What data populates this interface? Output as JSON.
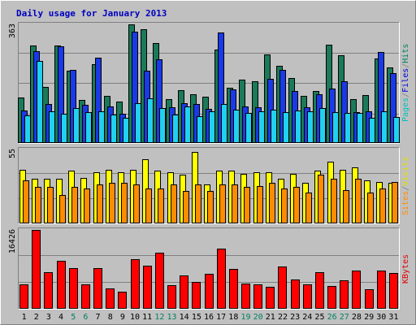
{
  "chart_data": {
    "type": "bar",
    "title": "Daily usage for January 2013",
    "days": [
      "1",
      "2",
      "3",
      "4",
      "5",
      "6",
      "7",
      "8",
      "9",
      "10",
      "11",
      "12",
      "13",
      "14",
      "15",
      "16",
      "17",
      "18",
      "19",
      "20",
      "21",
      "22",
      "23",
      "24",
      "25",
      "26",
      "27",
      "28",
      "29",
      "30",
      "31"
    ],
    "weekend_days": [
      "5",
      "6",
      "12",
      "13",
      "19",
      "20",
      "26",
      "27"
    ],
    "panels": [
      {
        "name": "hits-files-pages",
        "max_label": "363",
        "max": 363,
        "legend": [
          "Pages",
          "Files",
          "Hits"
        ],
        "series": [
          {
            "name": "Hits",
            "color": "#1a7a5a",
            "values": [
              140,
              298,
              172,
              298,
              221,
              131,
              242,
              145,
              128,
              363,
              349,
              305,
              135,
              162,
              149,
              142,
              285,
              169,
              193,
              190,
              271,
              236,
              200,
              143,
              158,
              301,
              269,
              135,
              147,
              258,
              230
            ]
          },
          {
            "name": "Files",
            "color": "#1a3ae8",
            "values": [
              100,
              282,
              119,
              295,
              224,
              117,
              260,
              113,
              89,
              340,
              221,
              255,
              110,
              123,
              119,
              105,
              337,
              163,
              111,
              110,
              196,
              225,
              159,
              109,
              150,
              167,
              190,
              94,
              98,
              278,
              213
            ]
          },
          {
            "name": "Pages",
            "color": "#22d0f0",
            "values": [
              84,
              252,
              98,
              89,
              107,
              94,
              96,
              87,
              77,
              121,
              136,
              107,
              86,
              112,
              81,
              96,
              120,
              102,
              92,
              96,
              102,
              95,
              99,
              97,
              108,
              95,
              92,
              93,
              77,
              96,
              80
            ]
          }
        ]
      },
      {
        "name": "visits-sites",
        "max_label": "55",
        "max": 55,
        "legend": [
          "Sites",
          "Visits"
        ],
        "series": [
          {
            "name": "Visits",
            "color": "#ffff00",
            "values": [
              40,
              33,
              33,
              33,
              39,
              34,
              38,
              40,
              38,
              40,
              48,
              39,
              38,
              36,
              53,
              29,
              39,
              39,
              37,
              38,
              38,
              33,
              37,
              30,
              39,
              46,
              40,
              42,
              32,
              31,
              30
            ]
          },
          {
            "name": "Sites",
            "color": "#ff8c00",
            "values": [
              32,
              27,
              27,
              21,
              27,
              26,
              29,
              30,
              30,
              29,
              26,
              26,
              29,
              24,
              29,
              24,
              29,
              29,
              27,
              28,
              30,
              26,
              27,
              23,
              36,
              33,
              25,
              33,
              23,
              26,
              31
            ]
          }
        ]
      },
      {
        "name": "kbytes",
        "max_label": "16426",
        "max": 16426,
        "legend": [
          "KBytes"
        ],
        "series": [
          {
            "name": "KBytes",
            "color": "#ff0000",
            "values": [
              5000,
              16426,
              7700,
              10000,
              8500,
              5000,
              8500,
              4200,
              3500,
              10400,
              9000,
              11700,
              4900,
              6900,
              5600,
              7300,
              12600,
              8300,
              5200,
              5000,
              4600,
              8800,
              6100,
              5000,
              7700,
              4800,
              5900,
              7900,
              4100,
              8000,
              7500
            ]
          }
        ]
      }
    ]
  }
}
